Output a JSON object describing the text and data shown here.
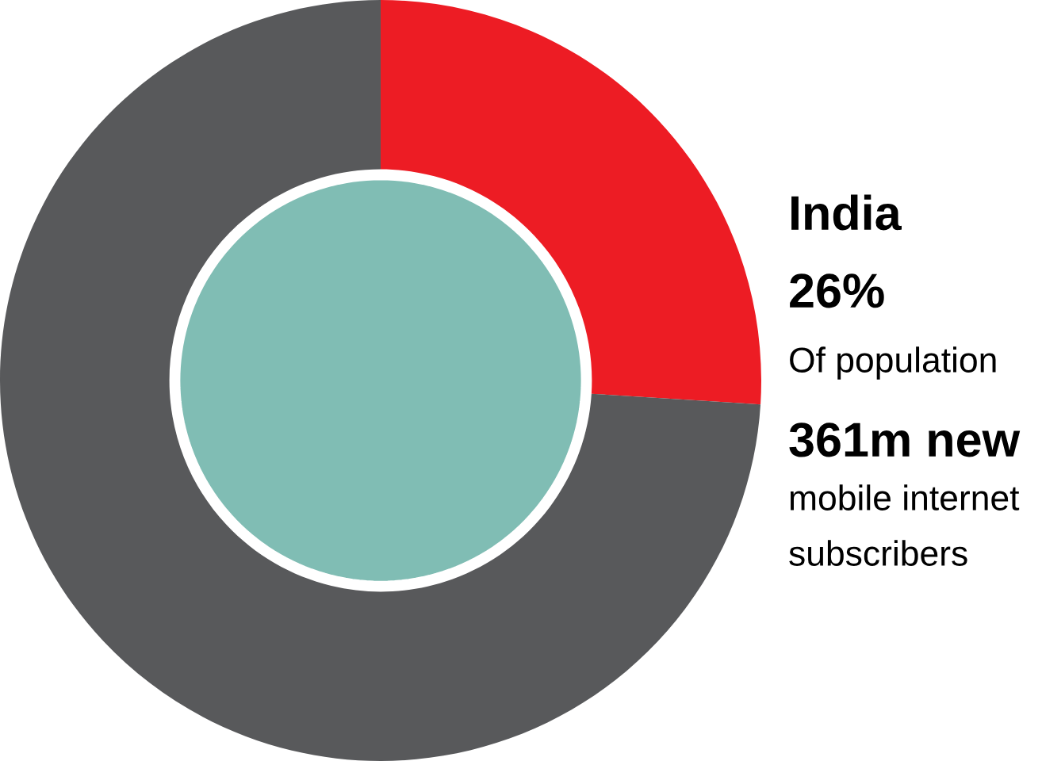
{
  "chart_data": {
    "type": "donut",
    "title": "India",
    "categories": [
      null,
      null
    ],
    "values": [
      26,
      74
    ],
    "colors": [
      "#ed1c24",
      "#58595b"
    ],
    "annotations": [
      "26%",
      "Of population",
      "361m new",
      "mobile internet",
      "subscribers"
    ]
  }
}
